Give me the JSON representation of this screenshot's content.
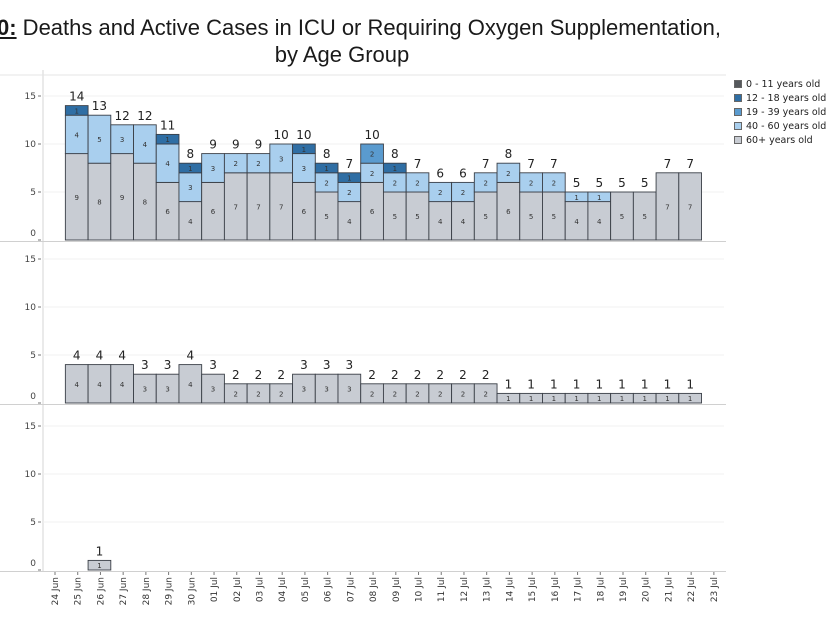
{
  "title": {
    "prefix": "0:",
    "line1": " Deaths and Active Cases in ICU or Requiring Oxygen Supplementation,",
    "line2": "by Age Group"
  },
  "legend": [
    {
      "label": "0 - 11 years old",
      "color": "#55585c"
    },
    {
      "label": "12 - 18 years old",
      "color": "#2f6ea4"
    },
    {
      "label": "19 - 39 years old",
      "color": "#5a9bcf"
    },
    {
      "label": "40 - 60 years old",
      "color": "#a9cfee"
    },
    {
      "label": "60+ years old",
      "color": "#c8ccd3"
    }
  ],
  "chart_data": [
    {
      "type": "bar",
      "stacked": true,
      "panel": "top",
      "categories": [
        "24 Jun",
        "25 Jun",
        "26 Jun",
        "27 Jun",
        "28 Jun",
        "29 Jun",
        "30 Jun",
        "01 Jul",
        "02 Jul",
        "03 Jul",
        "04 Jul",
        "05 Jul",
        "06 Jul",
        "07 Jul",
        "08 Jul",
        "09 Jul",
        "10 Jul",
        "11 Jul",
        "12 Jul",
        "13 Jul",
        "14 Jul",
        "15 Jul",
        "16 Jul",
        "17 Jul",
        "18 Jul",
        "19 Jul",
        "20 Jul",
        "21 Jul",
        "22 Jul",
        "23 Jul"
      ],
      "yticks": [
        0,
        5,
        10,
        15
      ],
      "ylim": [
        0,
        16
      ],
      "series": [
        {
          "name": "60+ years old",
          "values": [
            0,
            9,
            8,
            9,
            8,
            6,
            4,
            6,
            7,
            7,
            7,
            6,
            5,
            4,
            6,
            5,
            5,
            4,
            4,
            5,
            6,
            5,
            5,
            4,
            4,
            5,
            5,
            7,
            7,
            0
          ]
        },
        {
          "name": "40 - 60 years old",
          "values": [
            0,
            4,
            5,
            3,
            4,
            4,
            3,
            3,
            2,
            2,
            3,
            3,
            2,
            2,
            2,
            2,
            2,
            2,
            2,
            2,
            2,
            2,
            2,
            1,
            1,
            0,
            0,
            0,
            0,
            0
          ]
        },
        {
          "name": "19 - 39 years old",
          "values": [
            0,
            0,
            0,
            0,
            0,
            0,
            0,
            0,
            0,
            0,
            0,
            0,
            0,
            0,
            2,
            0,
            0,
            0,
            0,
            0,
            0,
            0,
            0,
            0,
            0,
            0,
            0,
            0,
            0,
            0
          ]
        },
        {
          "name": "12 - 18 years old",
          "values": [
            0,
            1,
            0,
            0,
            0,
            1,
            1,
            0,
            0,
            0,
            0,
            1,
            1,
            1,
            0,
            1,
            0,
            0,
            0,
            0,
            0,
            0,
            0,
            0,
            0,
            0,
            0,
            0,
            0,
            0
          ]
        },
        {
          "name": "0 - 11 years old",
          "values": [
            0,
            0,
            0,
            0,
            0,
            0,
            0,
            0,
            0,
            0,
            0,
            0,
            0,
            0,
            0,
            0,
            0,
            0,
            0,
            0,
            0,
            0,
            0,
            0,
            0,
            0,
            0,
            0,
            0,
            0
          ]
        }
      ],
      "totals": [
        0,
        14,
        13,
        12,
        12,
        11,
        8,
        9,
        9,
        9,
        10,
        10,
        8,
        7,
        10,
        8,
        7,
        6,
        6,
        7,
        8,
        7,
        7,
        5,
        5,
        5,
        5,
        7,
        7,
        0
      ]
    },
    {
      "type": "bar",
      "stacked": true,
      "panel": "middle",
      "yticks": [
        0,
        5,
        10,
        15
      ],
      "ylim": [
        0,
        16
      ],
      "series": [
        {
          "name": "60+ years old",
          "values": [
            0,
            4,
            4,
            4,
            3,
            3,
            4,
            3,
            2,
            2,
            2,
            3,
            3,
            3,
            2,
            2,
            2,
            2,
            2,
            2,
            1,
            1,
            1,
            1,
            1,
            1,
            1,
            1,
            1,
            0
          ]
        }
      ],
      "totals": [
        0,
        4,
        4,
        4,
        3,
        3,
        4,
        3,
        2,
        2,
        2,
        3,
        3,
        3,
        2,
        2,
        2,
        2,
        2,
        2,
        1,
        1,
        1,
        1,
        1,
        1,
        1,
        1,
        1,
        0
      ]
    },
    {
      "type": "bar",
      "stacked": true,
      "panel": "bottom",
      "yticks": [
        0,
        5,
        10,
        15
      ],
      "ylim": [
        0,
        16
      ],
      "series": [
        {
          "name": "60+ years old",
          "values": [
            0,
            0,
            1,
            0,
            0,
            0,
            0,
            0,
            0,
            0,
            0,
            0,
            0,
            0,
            0,
            0,
            0,
            0,
            0,
            0,
            0,
            0,
            0,
            0,
            0,
            0,
            0,
            0,
            0,
            0
          ]
        }
      ],
      "totals": [
        0,
        0,
        1,
        0,
        0,
        0,
        0,
        0,
        0,
        0,
        0,
        0,
        0,
        0,
        0,
        0,
        0,
        0,
        0,
        0,
        0,
        0,
        0,
        0,
        0,
        0,
        0,
        0,
        0,
        0
      ]
    }
  ]
}
